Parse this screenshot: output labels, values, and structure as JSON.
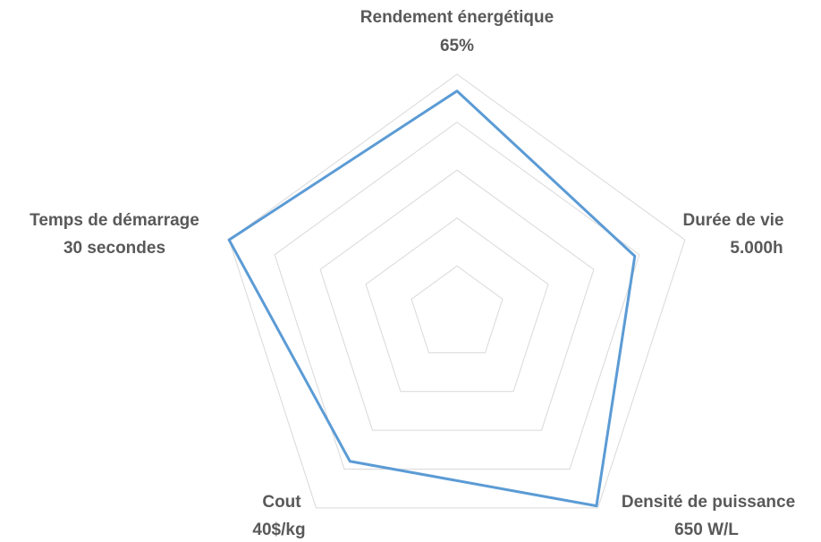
{
  "chart_data": {
    "type": "radar",
    "categories": [
      [
        "Rendement énergétique",
        "65%"
      ],
      [
        "Durée de vie",
        "5.000h"
      ],
      [
        "Densité de puissance",
        "650 W/L"
      ],
      [
        "Cout",
        "40$/kg"
      ],
      [
        "Temps de démarrage",
        "30 secondes"
      ]
    ],
    "values": [
      4.65,
      3.9,
      4.95,
      3.8,
      5.0
    ],
    "color": "#5b9bd5",
    "rlim": [
      0,
      5
    ],
    "rticks": [
      1,
      2,
      3,
      4,
      5
    ],
    "grid": true
  }
}
